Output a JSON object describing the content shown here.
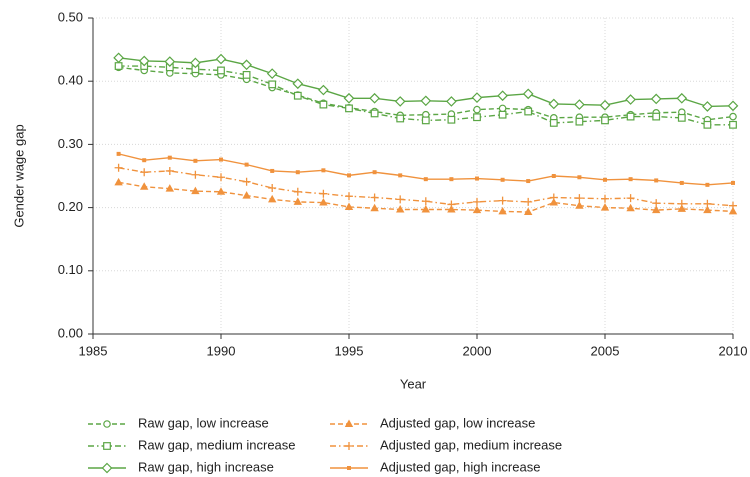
{
  "chart_data": {
    "type": "line",
    "xlabel": "Year",
    "ylabel": "Gender wage gap",
    "x": [
      1986,
      1987,
      1988,
      1989,
      1990,
      1991,
      1992,
      1993,
      1994,
      1995,
      1996,
      1997,
      1998,
      1999,
      2000,
      2001,
      2002,
      2003,
      2004,
      2005,
      2006,
      2007,
      2008,
      2009,
      2010
    ],
    "xlim": [
      1985,
      2010
    ],
    "xticks": [
      1985,
      1990,
      1995,
      2000,
      2005,
      2010
    ],
    "ylim": [
      0,
      0.5
    ],
    "yticks": [
      {
        "value": 0,
        "label": "0.00"
      },
      {
        "value": 0.1,
        "label": "0.10"
      },
      {
        "value": 0.2,
        "label": "0.20"
      },
      {
        "value": 0.3,
        "label": "0.30"
      },
      {
        "value": 0.4,
        "label": "0.40"
      },
      {
        "value": 0.5,
        "label": "0.50"
      }
    ],
    "grid": true,
    "legend": "bottom",
    "series": [
      {
        "name": "Raw gap, low increase",
        "color": "#5ba645",
        "marker": "circle",
        "dash": "dash",
        "values": [
          0.422,
          0.417,
          0.413,
          0.412,
          0.41,
          0.403,
          0.39,
          0.378,
          0.365,
          0.358,
          0.352,
          0.346,
          0.347,
          0.348,
          0.355,
          0.357,
          0.355,
          0.342,
          0.343,
          0.343,
          0.347,
          0.35,
          0.351,
          0.339,
          0.344
        ]
      },
      {
        "name": "Raw gap, medium increase",
        "color": "#5ba645",
        "marker": "square",
        "dash": "dashdot",
        "values": [
          0.424,
          0.424,
          0.422,
          0.419,
          0.417,
          0.41,
          0.395,
          0.377,
          0.363,
          0.357,
          0.349,
          0.341,
          0.338,
          0.339,
          0.343,
          0.347,
          0.352,
          0.334,
          0.336,
          0.338,
          0.344,
          0.344,
          0.342,
          0.331,
          0.331
        ]
      },
      {
        "name": "Raw gap, high increase",
        "color": "#5ba645",
        "marker": "diamond",
        "dash": "solid",
        "values": [
          0.437,
          0.432,
          0.431,
          0.429,
          0.435,
          0.426,
          0.412,
          0.396,
          0.386,
          0.373,
          0.373,
          0.368,
          0.369,
          0.368,
          0.374,
          0.377,
          0.38,
          0.364,
          0.363,
          0.362,
          0.371,
          0.372,
          0.373,
          0.36,
          0.361
        ]
      },
      {
        "name": "Adjusted gap, low increase",
        "color": "#f0923d",
        "marker": "triangle",
        "dash": "dash",
        "values": [
          0.24,
          0.233,
          0.23,
          0.226,
          0.225,
          0.219,
          0.213,
          0.209,
          0.208,
          0.201,
          0.199,
          0.197,
          0.197,
          0.197,
          0.196,
          0.194,
          0.193,
          0.208,
          0.203,
          0.2,
          0.199,
          0.196,
          0.198,
          0.196,
          0.194
        ]
      },
      {
        "name": "Adjusted gap, medium increase",
        "color": "#f0923d",
        "marker": "plus",
        "dash": "dashdot",
        "values": [
          0.263,
          0.256,
          0.258,
          0.252,
          0.248,
          0.241,
          0.231,
          0.225,
          0.222,
          0.218,
          0.216,
          0.213,
          0.21,
          0.205,
          0.209,
          0.211,
          0.209,
          0.216,
          0.215,
          0.214,
          0.215,
          0.207,
          0.206,
          0.206,
          0.203
        ]
      },
      {
        "name": "Adjusted gap, high increase",
        "color": "#f0923d",
        "marker": "smallsquare",
        "dash": "solid",
        "values": [
          0.285,
          0.275,
          0.279,
          0.274,
          0.276,
          0.268,
          0.258,
          0.256,
          0.259,
          0.251,
          0.256,
          0.251,
          0.245,
          0.245,
          0.246,
          0.244,
          0.242,
          0.25,
          0.248,
          0.244,
          0.245,
          0.243,
          0.239,
          0.236,
          0.239
        ]
      }
    ]
  }
}
